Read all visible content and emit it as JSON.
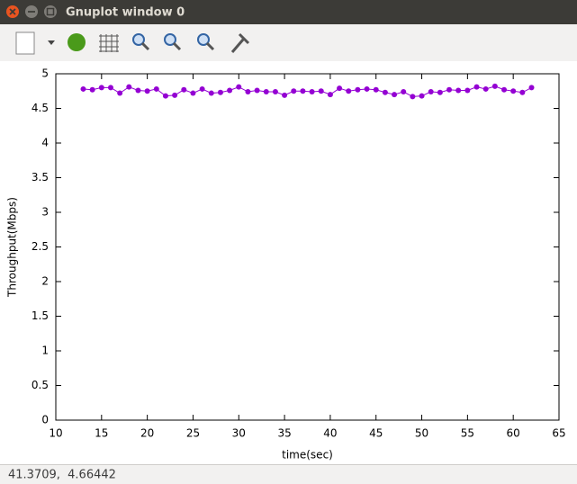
{
  "window": {
    "title": "Gnuplot window 0"
  },
  "status_bar": {
    "text": "41.3709,  4.66442"
  },
  "chart_data": {
    "type": "line",
    "xlabel": "time(sec)",
    "ylabel": "Throughput(Mbps)",
    "color": "#9400d3",
    "x": [
      13,
      14,
      15,
      16,
      17,
      18,
      19,
      20,
      21,
      22,
      23,
      24,
      25,
      26,
      27,
      28,
      29,
      30,
      31,
      32,
      33,
      34,
      35,
      36,
      37,
      38,
      39,
      40,
      41,
      42,
      43,
      44,
      45,
      46,
      47,
      48,
      49,
      50,
      51,
      52,
      53,
      54,
      55,
      56,
      57,
      58,
      59,
      60,
      61,
      62
    ],
    "values": [
      4.78,
      4.77,
      4.8,
      4.8,
      4.72,
      4.81,
      4.76,
      4.75,
      4.78,
      4.68,
      4.69,
      4.77,
      4.72,
      4.78,
      4.72,
      4.73,
      4.76,
      4.81,
      4.74,
      4.76,
      4.74,
      4.74,
      4.69,
      4.75,
      4.75,
      4.74,
      4.75,
      4.7,
      4.79,
      4.75,
      4.77,
      4.78,
      4.77,
      4.73,
      4.7,
      4.74,
      4.67,
      4.68,
      4.74,
      4.73,
      4.77,
      4.76,
      4.76,
      4.81,
      4.78,
      4.82,
      4.77,
      4.75,
      4.73,
      4.8
    ],
    "xlim": [
      10,
      65
    ],
    "xticks": [
      10,
      15,
      20,
      25,
      30,
      35,
      40,
      45,
      50,
      55,
      60,
      65
    ],
    "ylim": [
      0,
      5
    ],
    "yticks": [
      0,
      0.5,
      1,
      1.5,
      2,
      2.5,
      3,
      3.5,
      4,
      4.5,
      5
    ]
  }
}
